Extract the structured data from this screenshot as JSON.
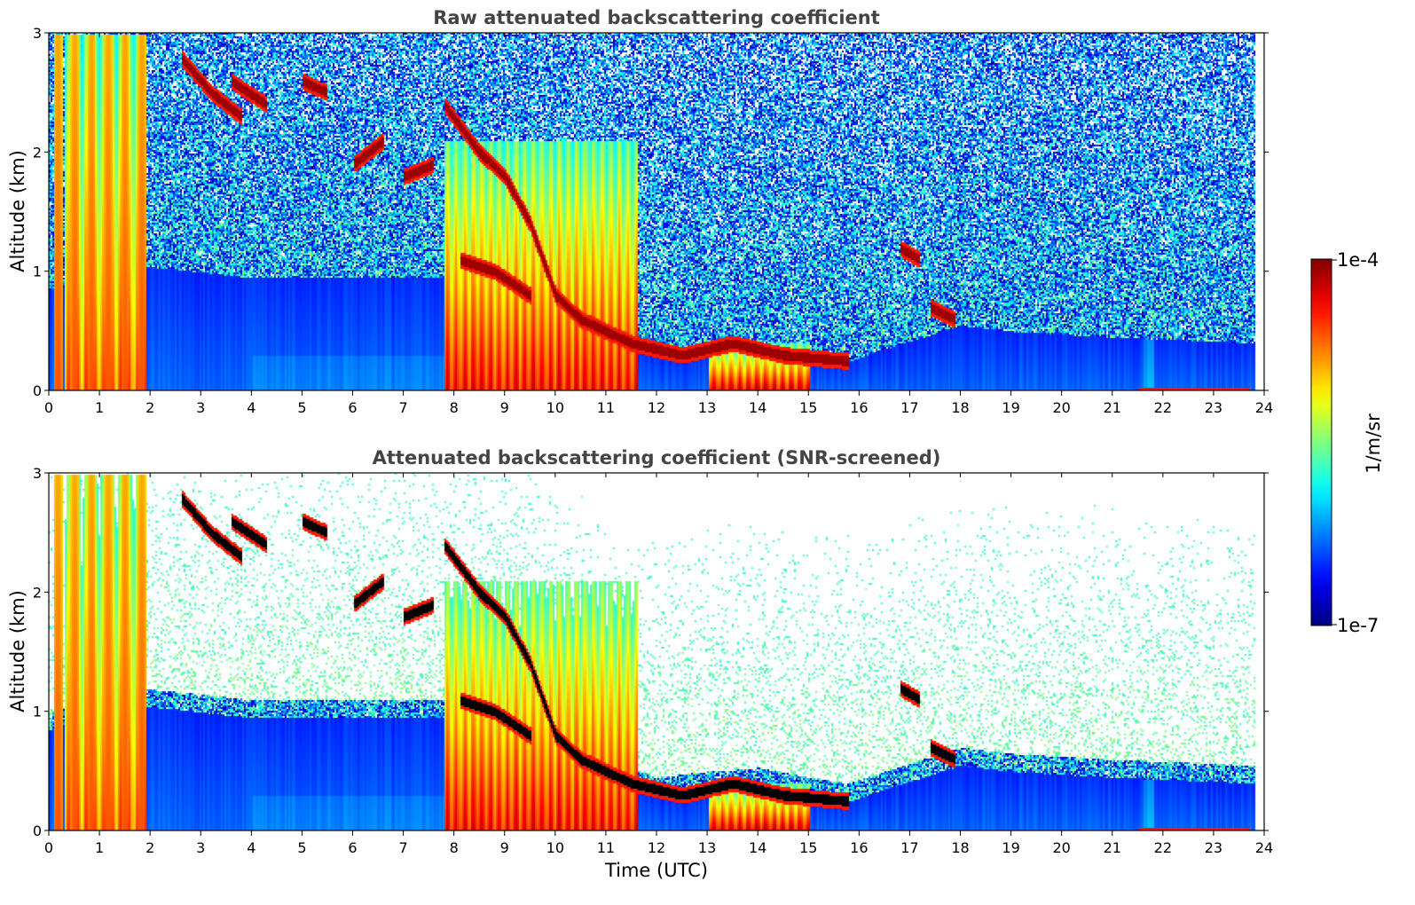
{
  "chart_data": [
    {
      "type": "heatmap",
      "title": "Raw attenuated backscattering coefficient",
      "xlabel": "",
      "ylabel": "Altitude (km)",
      "xlim": [
        0,
        24
      ],
      "ylim": [
        0,
        3
      ],
      "x_ticks": [
        "0",
        "1",
        "2",
        "3",
        "4",
        "5",
        "6",
        "7",
        "8",
        "9",
        "10",
        "11",
        "12",
        "13",
        "14",
        "15",
        "16",
        "17",
        "18",
        "19",
        "20",
        "21",
        "22",
        "23",
        "24"
      ],
      "y_ticks": [
        "0",
        "1",
        "2",
        "3"
      ],
      "screened": false
    },
    {
      "type": "heatmap",
      "title": "Attenuated backscattering coefficient (SNR-screened)",
      "xlabel": "Time (UTC)",
      "ylabel": "Altitude (km)",
      "xlim": [
        0,
        24
      ],
      "ylim": [
        0,
        3
      ],
      "x_ticks": [
        "0",
        "1",
        "2",
        "3",
        "4",
        "5",
        "6",
        "7",
        "8",
        "9",
        "10",
        "11",
        "12",
        "13",
        "14",
        "15",
        "16",
        "17",
        "18",
        "19",
        "20",
        "21",
        "22",
        "23",
        "24"
      ],
      "y_ticks": [
        "0",
        "1",
        "2",
        "3"
      ],
      "screened": true
    }
  ],
  "colorbar": {
    "label": "1/m/sr",
    "max_label": "1e-4",
    "min_label": "1e-7",
    "scale": "log",
    "colormap": "jet"
  },
  "features": {
    "boundary_layer_top_km": [
      [
        0.2,
        0.85
      ],
      [
        0.5,
        1.0
      ],
      [
        1.8,
        1.05
      ],
      [
        4.0,
        0.95
      ],
      [
        7.8,
        0.95
      ],
      [
        8.5,
        1.1
      ],
      [
        9.0,
        0.95
      ],
      [
        10.0,
        0.65
      ],
      [
        11.0,
        0.45
      ],
      [
        12.0,
        0.3
      ],
      [
        13.0,
        0.35
      ],
      [
        14.0,
        0.38
      ],
      [
        15.0,
        0.3
      ],
      [
        15.8,
        0.25
      ],
      [
        16.5,
        0.35
      ],
      [
        18.0,
        0.55
      ],
      [
        19.0,
        0.5
      ],
      [
        21.0,
        0.45
      ],
      [
        23.8,
        0.4
      ]
    ],
    "cloud_tracks": [
      [
        [
          2.6,
          2.8
        ],
        [
          3.2,
          2.5
        ],
        [
          3.8,
          2.3
        ]
      ],
      [
        [
          3.6,
          2.6
        ],
        [
          4.3,
          2.4
        ]
      ],
      [
        [
          5.0,
          2.6
        ],
        [
          5.5,
          2.5
        ]
      ],
      [
        [
          7.0,
          1.8
        ],
        [
          7.6,
          1.9
        ]
      ],
      [
        [
          7.8,
          2.4
        ],
        [
          8.5,
          2.0
        ],
        [
          9.0,
          1.8
        ],
        [
          9.5,
          1.4
        ],
        [
          10.0,
          0.8
        ],
        [
          10.5,
          0.6
        ],
        [
          11.5,
          0.4
        ],
        [
          12.5,
          0.3
        ],
        [
          13.5,
          0.4
        ],
        [
          14.5,
          0.3
        ],
        [
          15.8,
          0.25
        ]
      ],
      [
        [
          8.1,
          1.1
        ],
        [
          8.8,
          1.0
        ],
        [
          9.5,
          0.8
        ]
      ],
      [
        [
          16.8,
          1.2
        ],
        [
          17.2,
          1.1
        ]
      ],
      [
        [
          17.4,
          0.7
        ],
        [
          17.9,
          0.6
        ]
      ],
      [
        [
          6.0,
          1.9
        ],
        [
          6.6,
          2.1
        ]
      ]
    ],
    "smoke_layers": [
      {
        "t": [
          7.78,
          11.6
        ],
        "top_km": 2.1,
        "peak": 0.85
      },
      {
        "t": [
          13.0,
          15.0
        ],
        "top_km": 0.4,
        "peak": 0.9
      },
      {
        "t": [
          0.3,
          1.9
        ],
        "top_km": 3.0,
        "peak": 0.75
      }
    ]
  }
}
